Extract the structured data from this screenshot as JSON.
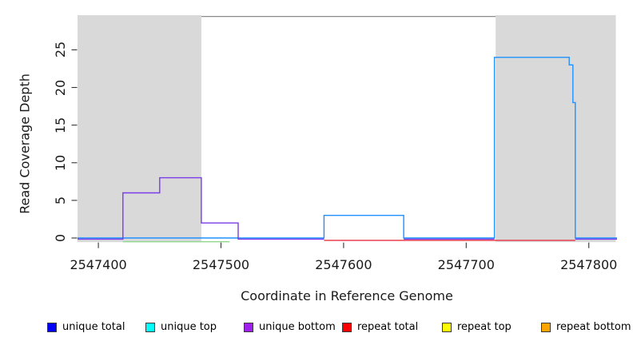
{
  "chart_data": {
    "type": "line",
    "title": "",
    "xlabel": "Coordinate in Reference Genome",
    "ylabel": "Read Coverage Depth",
    "xlim": [
      2547383,
      2547823
    ],
    "ylim": [
      -0.55,
      29.5
    ],
    "x_ticks": [
      2547400,
      2547500,
      2547600,
      2547700,
      2547800
    ],
    "y_ticks": [
      0,
      5,
      10,
      15,
      20,
      25
    ],
    "grid": false,
    "legend_position": "bottom",
    "shaded_regions": [
      {
        "name": "left-gray-region",
        "x0": 2547383,
        "x1": 2547484,
        "color": "#d9d9d9"
      },
      {
        "name": "right-gray-region",
        "x0": 2547724,
        "x1": 2547822,
        "color": "#d9d9d9"
      }
    ],
    "top_border_segment": {
      "x0": 2547484,
      "x1": 2547724,
      "color": "#8a8a8a"
    },
    "series": [
      {
        "name": "unique total coverage line",
        "color": "#1e90ff",
        "segments": [
          [
            [
              2547383,
              0
            ],
            [
              2547584,
              0
            ],
            [
              2547584,
              3
            ],
            [
              2547649,
              3
            ],
            [
              2547649,
              0
            ],
            [
              2547723,
              0
            ],
            [
              2547723,
              24
            ],
            [
              2547784,
              24
            ],
            [
              2547784,
              23
            ],
            [
              2547787,
              23
            ],
            [
              2547787,
              18
            ],
            [
              2547789,
              18
            ],
            [
              2547789,
              0
            ],
            [
              2547823,
              0
            ]
          ]
        ]
      },
      {
        "name": "unique bottom step line",
        "color": "#7a3be8",
        "segments": [
          [
            [
              2547383,
              -0.15
            ],
            [
              2547420,
              -0.15
            ],
            [
              2547420,
              6
            ],
            [
              2547450,
              6
            ],
            [
              2547450,
              8
            ],
            [
              2547484,
              8
            ],
            [
              2547484,
              2
            ],
            [
              2547514,
              2
            ],
            [
              2547514,
              -0.15
            ],
            [
              2547584,
              -0.15
            ]
          ],
          [
            [
              2547649,
              -0.15
            ],
            [
              2547723,
              -0.15
            ]
          ],
          [
            [
              2547789,
              -0.15
            ],
            [
              2547823,
              -0.15
            ]
          ]
        ]
      },
      {
        "name": "repeat total baseline",
        "color": "#e8404e",
        "segments": [
          [
            [
              2547584,
              -0.32
            ],
            [
              2547789,
              -0.32
            ]
          ]
        ]
      },
      {
        "name": "green baseline segment",
        "color": "#8fd88f",
        "segments": [
          [
            [
              2547420,
              -0.5
            ],
            [
              2547507,
              -0.5
            ]
          ]
        ]
      }
    ]
  },
  "legend": {
    "items": [
      {
        "label": "unique total",
        "color": "#0000ff"
      },
      {
        "label": "unique top",
        "color": "#00ffff"
      },
      {
        "label": "unique bottom",
        "color": "#a020f0"
      },
      {
        "label": "repeat total",
        "color": "#ff0000"
      },
      {
        "label": "repeat top",
        "color": "#ffff00"
      },
      {
        "label": "repeat bottom",
        "color": "#ffa500"
      }
    ]
  },
  "colors": {
    "axis_tick": "#333333",
    "shading": "#d9d9d9"
  }
}
